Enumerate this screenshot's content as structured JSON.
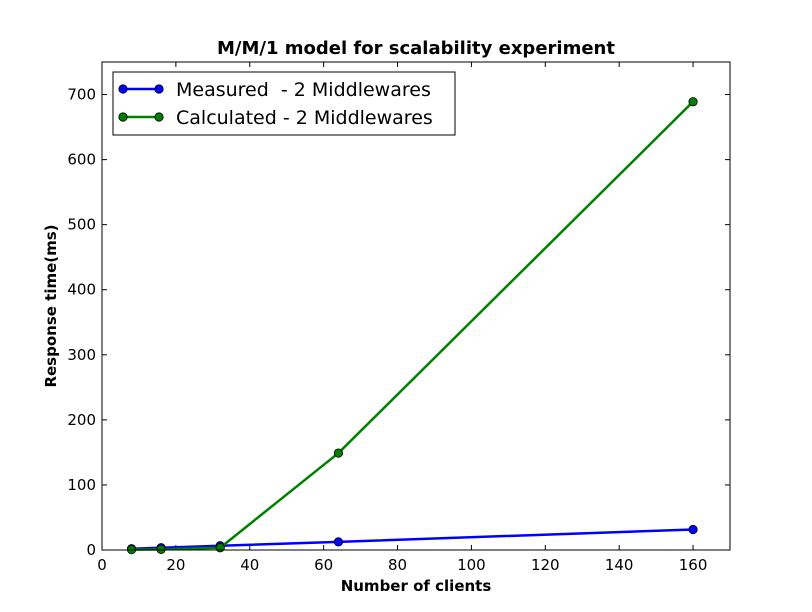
{
  "chart_data": {
    "type": "line",
    "title": "M/M/1 model for scalability experiment",
    "xlabel": "Number of clients",
    "ylabel": "Response time(ms)",
    "xlim": [
      0,
      170
    ],
    "ylim": [
      0,
      750
    ],
    "xticks": [
      0,
      20,
      40,
      60,
      80,
      100,
      120,
      140,
      160
    ],
    "yticks": [
      0,
      100,
      200,
      300,
      400,
      500,
      600,
      700
    ],
    "grid": false,
    "legend_position": "top-left",
    "series": [
      {
        "name": "Measured  - 2 Middlewares",
        "color": "#0000ff",
        "x": [
          8,
          16,
          32,
          64,
          160
        ],
        "y": [
          2,
          3.5,
          6.5,
          12.5,
          31.5
        ]
      },
      {
        "name": "Calculated - 2 Middlewares",
        "color": "#008000",
        "x": [
          8,
          16,
          32,
          64,
          160
        ],
        "y": [
          0.5,
          1,
          3.5,
          149,
          689
        ]
      }
    ]
  }
}
